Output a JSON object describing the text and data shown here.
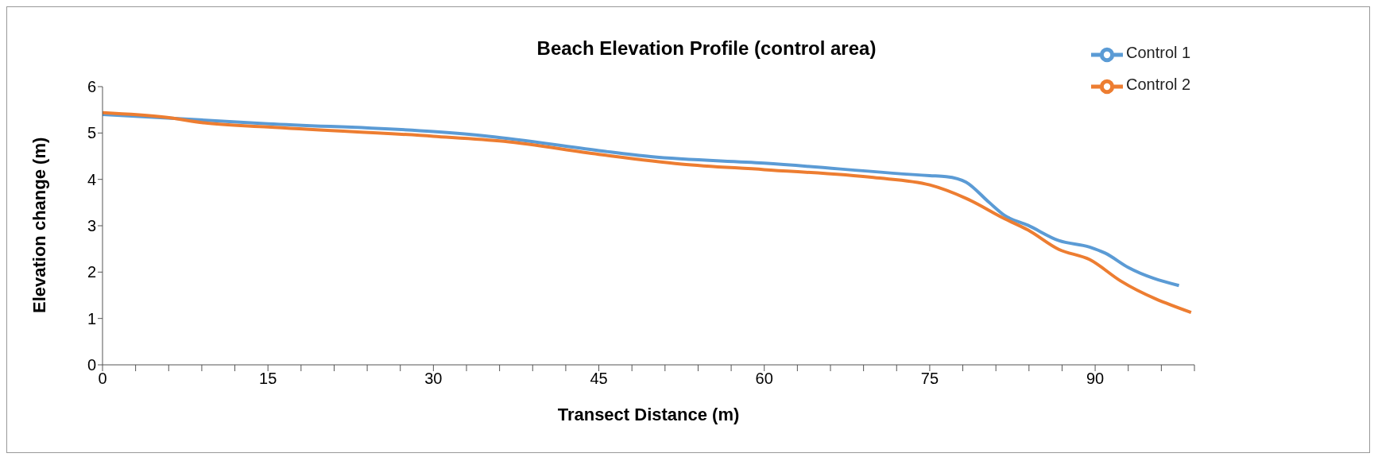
{
  "chart_data": {
    "type": "line",
    "title": "Beach Elevation Profile (control area)",
    "xlabel": "Transect Distance (m)",
    "ylabel": "Elevation change (m)",
    "xlim": [
      0,
      99
    ],
    "xticks": [
      0,
      {
        "value": 3,
        "label": null
      },
      {
        "value": 6,
        "label": null
      },
      {
        "value": 9,
        "label": null
      },
      {
        "value": 12,
        "label": null
      },
      15,
      {
        "value": 18,
        "label": null
      },
      {
        "value": 21,
        "label": null
      },
      {
        "value": 24,
        "label": null
      },
      {
        "value": 27,
        "label": null
      },
      30,
      {
        "value": 33,
        "label": null
      },
      {
        "value": 36,
        "label": null
      },
      {
        "value": 39,
        "label": null
      },
      {
        "value": 42,
        "label": null
      },
      45,
      {
        "value": 48,
        "label": null
      },
      {
        "value": 51,
        "label": null
      },
      {
        "value": 54,
        "label": null
      },
      {
        "value": 57,
        "label": null
      },
      60,
      {
        "value": 63,
        "label": null
      },
      {
        "value": 66,
        "label": null
      },
      {
        "value": 69,
        "label": null
      },
      {
        "value": 72,
        "label": null
      },
      75,
      {
        "value": 78,
        "label": null
      },
      {
        "value": 81,
        "label": null
      },
      {
        "value": 84,
        "label": null
      },
      {
        "value": 87,
        "label": null
      },
      90,
      {
        "value": 93,
        "label": null
      },
      {
        "value": 96,
        "label": null
      },
      {
        "value": 99,
        "label": null
      }
    ],
    "ylim": [
      0,
      6
    ],
    "yticks": [
      0,
      1,
      2,
      3,
      4,
      5,
      6
    ],
    "grid": false,
    "legend": "top right",
    "marker": "none",
    "line_style": "solid",
    "series": [
      {
        "name": "Control 1",
        "color": "#5b9bd5",
        "x": [
          0,
          15,
          30,
          35,
          45,
          49.7,
          60,
          75,
          76.5,
          78.3,
          80.4,
          81.8,
          83.9,
          86.7,
          89.5,
          90.9,
          93,
          97.6
        ],
        "values": [
          5.4,
          5.2,
          5.03,
          4.93,
          4.62,
          4.49,
          4.35,
          4.08,
          4.06,
          3.94,
          3.5,
          3.22,
          3.01,
          2.68,
          2.54,
          2.41,
          2.1,
          1.71
        ]
      },
      {
        "name": "Control 2",
        "color": "#ed7d31",
        "x": [
          0,
          5.7,
          9.2,
          15,
          30,
          36.4,
          45,
          52.5,
          60,
          69.9,
          75,
          78.3,
          81.8,
          83.9,
          86.7,
          89.5,
          92.3,
          98.7
        ],
        "values": [
          5.44,
          5.34,
          5.22,
          5.13,
          4.93,
          4.82,
          4.54,
          4.33,
          4.21,
          4.04,
          3.88,
          3.59,
          3.15,
          2.91,
          2.49,
          2.27,
          1.81,
          1.13
        ]
      }
    ]
  }
}
